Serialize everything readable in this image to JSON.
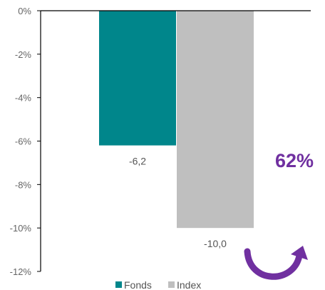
{
  "chart_data": {
    "type": "bar",
    "categories": [
      ""
    ],
    "series": [
      {
        "name": "Fonds",
        "values": [
          -6.2
        ],
        "color": "#00868B"
      },
      {
        "name": "Index",
        "values": [
          -10.0
        ],
        "color": "#BFBFBF"
      }
    ],
    "data_labels": [
      "-6,2",
      "-10,0"
    ],
    "y_tick_labels": [
      "0%",
      "-2%",
      "-4%",
      "-6%",
      "-8%",
      "-10%",
      "-12%"
    ],
    "ylim": [
      -12,
      0
    ],
    "grid": false,
    "legend": {
      "placement": "bottom",
      "entries": [
        "Fonds",
        "Index"
      ]
    },
    "annotation": {
      "text": "62%",
      "color": "#7030A0",
      "arrow_icon": "curved-arrow-icon"
    }
  }
}
